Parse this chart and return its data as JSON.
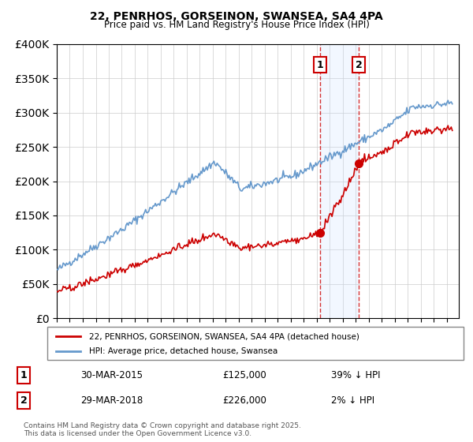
{
  "title1": "22, PENRHOS, GORSEINON, SWANSEA, SA4 4PA",
  "title2": "Price paid vs. HM Land Registry's House Price Index (HPI)",
  "legend_label_red": "22, PENRHOS, GORSEINON, SWANSEA, SA4 4PA (detached house)",
  "legend_label_blue": "HPI: Average price, detached house, Swansea",
  "transaction1_date": "30-MAR-2015",
  "transaction1_price": 125000,
  "transaction1_label": "1",
  "transaction1_pct": "39% ↓ HPI",
  "transaction2_date": "29-MAR-2018",
  "transaction2_price": 226000,
  "transaction2_label": "2",
  "transaction2_pct": "2% ↓ HPI",
  "footer": "Contains HM Land Registry data © Crown copyright and database right 2025.\nThis data is licensed under the Open Government Licence v3.0.",
  "ylim": [
    0,
    400000
  ],
  "color_red": "#cc0000",
  "color_blue": "#6699cc",
  "color_shade": "#cce0ff",
  "background": "#ffffff"
}
